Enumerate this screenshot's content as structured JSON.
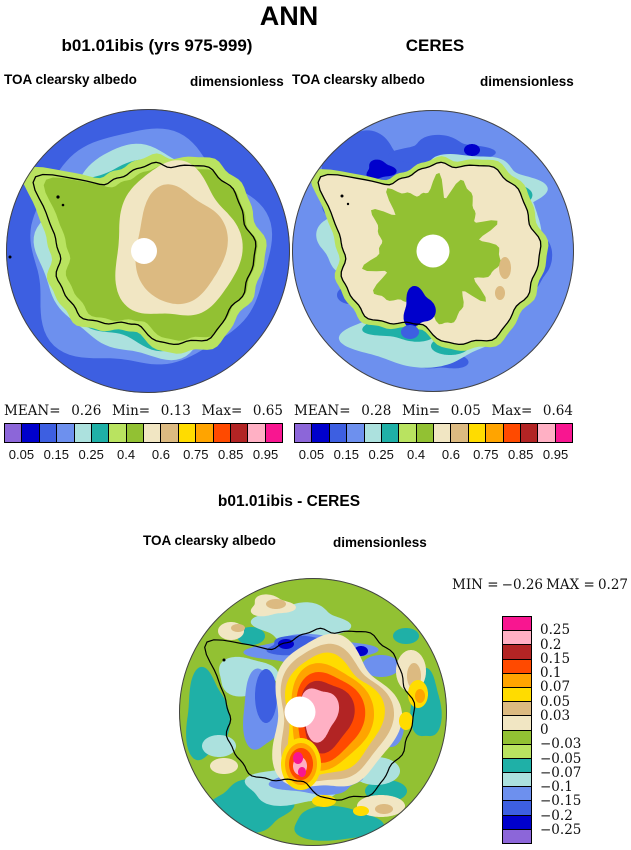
{
  "title": "ANN",
  "palette": {
    "purple": "#8C66D9",
    "mediumblue": "#0000CC",
    "royalblue": "#3D5FE1",
    "cornflower": "#6D90EE",
    "paleturquoise": "#ACE1DE",
    "seagreen": "#1FB0A7",
    "greenyellow": "#B9E360",
    "yellowgreen": "#92C133",
    "cream": "#F1E6C3",
    "tan": "#DCBA81",
    "gold": "#FFDC00",
    "orange": "#FFA400",
    "orangered": "#FF4A00",
    "firebrick": "#B22424",
    "pink": "#FFB0C4",
    "deeppink": "#F81690",
    "white": "#FFFFFF",
    "coast": "#000000",
    "rim": "#444444"
  },
  "panels": [
    {
      "title": "b01.01ibis (yrs 975-999)",
      "variable": "TOA clearsky albedo",
      "units": "dimensionless",
      "stats": {
        "mean_label": "MEAN=",
        "mean": "0.26",
        "min_label": "Min=",
        "min": "0.13",
        "max_label": "Max=",
        "max": "0.65"
      }
    },
    {
      "title": "CERES",
      "variable": "TOA clearsky albedo",
      "units": "dimensionless",
      "stats": {
        "mean_label": "MEAN=",
        "mean": "0.28",
        "min_label": "Min=",
        "min": "0.05",
        "max_label": "Max=",
        "max": "0.64"
      }
    }
  ],
  "albedo_colorbar": {
    "color_names": [
      "purple",
      "mediumblue",
      "royalblue",
      "cornflower",
      "paleturquoise",
      "seagreen",
      "greenyellow",
      "yellowgreen",
      "cream",
      "tan",
      "gold",
      "orange",
      "orangered",
      "firebrick",
      "pink",
      "deeppink"
    ],
    "tick_labels": [
      "0.05",
      "0.15",
      "0.25",
      "0.4",
      "0.6",
      "0.75",
      "0.85",
      "0.95"
    ],
    "tick_positions": [
      1,
      3,
      5,
      7,
      9,
      11,
      13,
      15
    ]
  },
  "diff": {
    "title": "b01.01ibis - CERES",
    "variable": "TOA clearsky albedo",
    "units": "dimensionless",
    "min_label": "MIN =",
    "min": "−0.26",
    "max_label": "MAX =",
    "max": "0.27",
    "colorbar": {
      "color_names": [
        "deeppink",
        "pink",
        "firebrick",
        "orangered",
        "orange",
        "gold",
        "tan",
        "cream",
        "yellowgreen",
        "greenyellow",
        "seagreen",
        "paleturquoise",
        "cornflower",
        "royalblue",
        "mediumblue",
        "purple"
      ],
      "labels": [
        "0.25",
        "0.2",
        "0.15",
        "0.1",
        "0.07",
        "0.05",
        "0.03",
        "0",
        "−0.03",
        "−0.05",
        "−0.07",
        "−0.1",
        "−0.15",
        "−0.2",
        "−0.25"
      ]
    }
  },
  "chart_data": [
    {
      "type": "heatmap",
      "subtype": "south-polar filled contour map",
      "title": "b01.01ibis (yrs 975-999)",
      "season": "ANN",
      "variable": "TOA clearsky albedo",
      "units": "dimensionless",
      "region": "Antarctica, south polar projection",
      "contour_levels": [
        0.05,
        0.1,
        0.15,
        0.2,
        0.25,
        0.3,
        0.4,
        0.5,
        0.6,
        0.7,
        0.75,
        0.8,
        0.85,
        0.9,
        0.95
      ],
      "stats": {
        "mean": 0.26,
        "min": 0.13,
        "max": 0.65
      },
      "legend_position": "below"
    },
    {
      "type": "heatmap",
      "subtype": "south-polar filled contour map",
      "title": "CERES",
      "season": "ANN",
      "variable": "TOA clearsky albedo",
      "units": "dimensionless",
      "region": "Antarctica, south polar projection",
      "contour_levels": [
        0.05,
        0.1,
        0.15,
        0.2,
        0.25,
        0.3,
        0.4,
        0.5,
        0.6,
        0.7,
        0.75,
        0.8,
        0.85,
        0.9,
        0.95
      ],
      "stats": {
        "mean": 0.28,
        "min": 0.05,
        "max": 0.64
      },
      "legend_position": "below"
    },
    {
      "type": "heatmap",
      "subtype": "south-polar filled contour difference map",
      "title": "b01.01ibis - CERES",
      "season": "ANN",
      "variable": "TOA clearsky albedo",
      "units": "dimensionless",
      "region": "Antarctica, south polar projection",
      "contour_levels": [
        -0.25,
        -0.2,
        -0.15,
        -0.1,
        -0.07,
        -0.05,
        -0.03,
        0,
        0.03,
        0.05,
        0.07,
        0.1,
        0.15,
        0.2,
        0.25
      ],
      "stats": {
        "min": -0.26,
        "max": 0.27
      },
      "legend_position": "right"
    }
  ]
}
